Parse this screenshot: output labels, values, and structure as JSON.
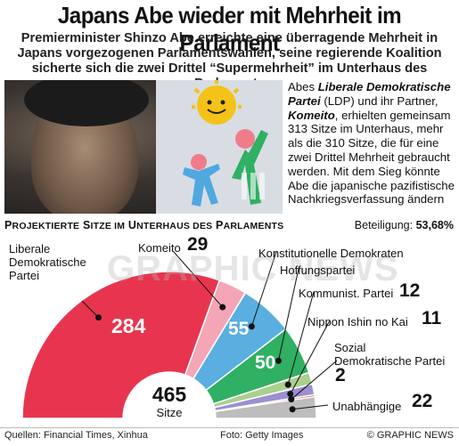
{
  "headline": "Japans Abe wieder mit Mehrheit im Parlament",
  "subheadline": "Premierminister Shinzo Abe erreichte eine überragende Mehrheit in Japans vorgezogenen Parlamentswahlen, seine regierende Koalition sicherte sich die zwei Drittel “Supermehrheit” im Unterhaus des Parlaments",
  "article": {
    "p1": "Abes ",
    "ldp": "Liberale Demokratische Partei",
    "p2": " (LDP) und ihr Partner, ",
    "komeito": "Komeito",
    "p3": ", erhielten gemeinsam 313 Sitze im Unterhaus, mehr als die 310 Sitze, die für eine zwei Drittel Mehrheit gebraucht werden. Mit dem Sieg könnte Abe die japanische pazifistische Nachkriegsverfassung ändern"
  },
  "chart_head": {
    "p": "P",
    "rojektierte": "ROJEKTIERTE",
    "s": " S",
    "itze_im": "ITZE IM",
    "u": " U",
    "nterhaus_des": "NTERHAUS DES",
    "pp": " P",
    "arlaments": "ARLAMENTS"
  },
  "turnout": {
    "label": "Beteiligung: ",
    "value": "53,68%"
  },
  "chart_data": {
    "type": "pie",
    "title": "Projektierte Sitze im Unterhaus des Parlaments",
    "total": 465,
    "total_label": "Sitze",
    "series": [
      {
        "name": "Liberale Demokratische Partei",
        "value": 284,
        "color": "#e8354f"
      },
      {
        "name": "Komeito",
        "value": 29,
        "color": "#f4a6b6"
      },
      {
        "name": "Konstitutionelle Demokraten",
        "value": 55,
        "color": "#5aaee0"
      },
      {
        "name": "Hoffungspartei",
        "value": 50,
        "color": "#2fb062"
      },
      {
        "name": "Kommunist. Partei",
        "value": 12,
        "color": "#a9d08e"
      },
      {
        "name": "Nippon Ishin no Kai",
        "value": 11,
        "color": "#9b8fd0"
      },
      {
        "name": "Sozial Demokratische Partei",
        "value": 2,
        "color": "#e03a3a"
      },
      {
        "name": "Unabhängige",
        "value": 22,
        "color": "#bdbdbd"
      }
    ]
  },
  "labels": {
    "ldp_line1": "Liberale",
    "ldp_line2": "Demokratische",
    "ldp_line3": "Partei",
    "komeito": "Komeito",
    "cdp": "Konstitutionelle Demokraten",
    "hope": "Hoffungspartei",
    "jcp": "Kommunist. Partei",
    "ishin": "Nippon Ishin no Kai",
    "sdp_line1": "Sozial",
    "sdp_line2": "Demokratische Partei",
    "ind": "Unabhängige"
  },
  "values": {
    "ldp": "284",
    "komeito": "29",
    "cdp": "55",
    "hope": "50",
    "jcp": "12",
    "ishin": "11",
    "sdp": "2",
    "ind": "22"
  },
  "total": {
    "value": "465",
    "label": "Sitze"
  },
  "footer": {
    "sources": "Quellen: Financial Times, Xinhua",
    "photo": "Foto: Getty Images",
    "brand": "© GRAPHIC NEWS"
  },
  "watermark": "GRAPHIC NEWS"
}
